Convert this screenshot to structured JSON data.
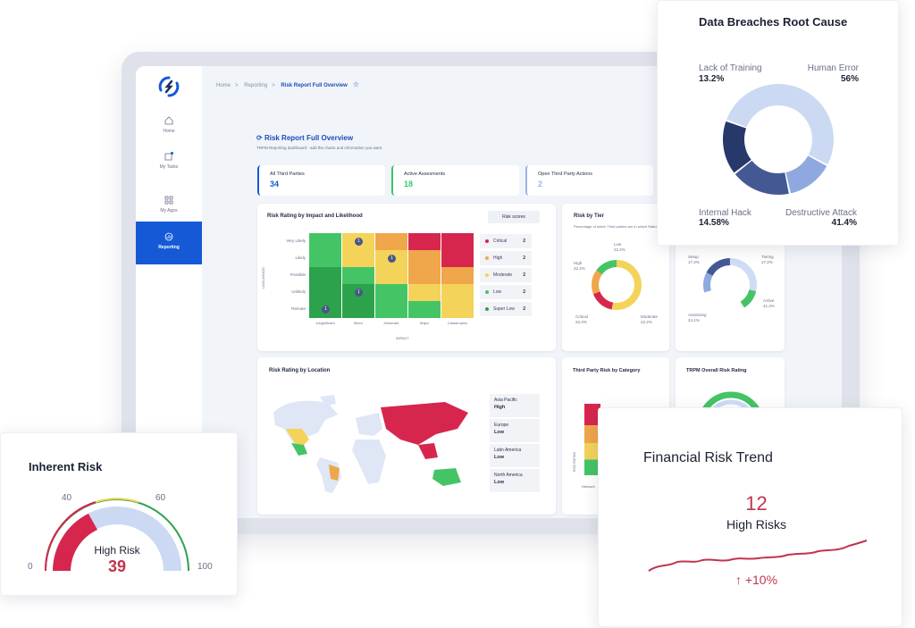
{
  "breadcrumb": {
    "home": "Home",
    "reporting": "Reporting",
    "current": "Risk Report Full Overview"
  },
  "sidebar": {
    "items": [
      {
        "label": "Home",
        "icon": "home-icon"
      },
      {
        "label": "My Tasks",
        "icon": "tasks-icon",
        "badge": "4"
      },
      {
        "label": "My Apps",
        "icon": "apps-icon"
      },
      {
        "label": "Reporting",
        "icon": "chart-icon",
        "active": true
      }
    ]
  },
  "page": {
    "title": "Risk Report Full Overview",
    "subtitle": "TRPM Reporting dashboard - add the charts and information you want"
  },
  "kpis": [
    {
      "label": "All Third Parties",
      "value": "34",
      "accent": "#1559d6"
    },
    {
      "label": "Active Assesments",
      "value": "18",
      "accent": "#35c76a"
    },
    {
      "label": "Open Third Party Actions",
      "value": "2",
      "accent": "#9db3e6"
    }
  ],
  "heatmap": {
    "title": "Risk Rating by Impact and Likelihood",
    "button": "Risk scores",
    "y_axis": "LIKELIHOOD",
    "x_axis": "IMPACT",
    "rows": [
      "Very Likely",
      "Likely",
      "Possible",
      "Unlikely",
      "Remote"
    ],
    "cols": [
      "Insignificant",
      "Minor",
      "Moderate",
      "Major",
      "Catastrophic"
    ],
    "scores": [
      {
        "label": "Critical",
        "count": "2",
        "color": "#d7264e"
      },
      {
        "label": "High",
        "count": "2",
        "color": "#f0a64a"
      },
      {
        "label": "Moderate",
        "count": "2",
        "color": "#f3d35a"
      },
      {
        "label": "Low",
        "count": "2",
        "color": "#45c466"
      },
      {
        "label": "Super Low",
        "count": "2",
        "color": "#2ca24d"
      }
    ]
  },
  "tier": {
    "title": "Risk by Tier",
    "subtitle": "Percentage of which Third parties are in which Status",
    "segments": [
      {
        "label": "Low",
        "value": "22.2%"
      },
      {
        "label": "High",
        "value": "22.2%"
      },
      {
        "label": "Critical",
        "value": "22.2%"
      },
      {
        "label": "Moderate",
        "value": "22.2%"
      }
    ]
  },
  "status_donut": {
    "segments": [
      {
        "label": "Setup",
        "value": "17.2%"
      },
      {
        "label": "Tiering",
        "value": "17.2%"
      },
      {
        "label": "Active",
        "value": "41.4%"
      },
      {
        "label": "Assessing",
        "value": "24.1%"
      }
    ]
  },
  "location": {
    "title": "Risk Rating by Location",
    "regions": [
      {
        "name": "Asia Pacific",
        "level": "High"
      },
      {
        "name": "Europe",
        "level": "Low"
      },
      {
        "name": "Latin America",
        "level": "Low"
      },
      {
        "name": "North America",
        "level": "Low"
      }
    ]
  },
  "category": {
    "title": "Third Party Risk by Category",
    "y_label": "RISK RATING",
    "x_label": "Network"
  },
  "overall": {
    "title": "TRPM Overall Risk Rating"
  },
  "breaches": {
    "title": "Data Breaches Root Cause",
    "segments": [
      {
        "label": "Lack of Training",
        "value": "13.2%",
        "color": "#27386a"
      },
      {
        "label": "Human Error",
        "value": "56%",
        "color": "#ccd9f3"
      },
      {
        "label": "Internal Hack",
        "value": "14.58%",
        "color": "#445993"
      },
      {
        "label": "Destructive Attack",
        "value": "41.4%",
        "color": "#8fa8e0"
      }
    ]
  },
  "inherent": {
    "title": "Inherent Risk",
    "ticks": [
      "0",
      "40",
      "60",
      "100"
    ],
    "label": "High Risk",
    "value": "39"
  },
  "financial": {
    "title": "Financial Risk Trend",
    "count": "12",
    "label": "High Risks",
    "change": "+10%",
    "trend_color": "#c0344d"
  }
}
